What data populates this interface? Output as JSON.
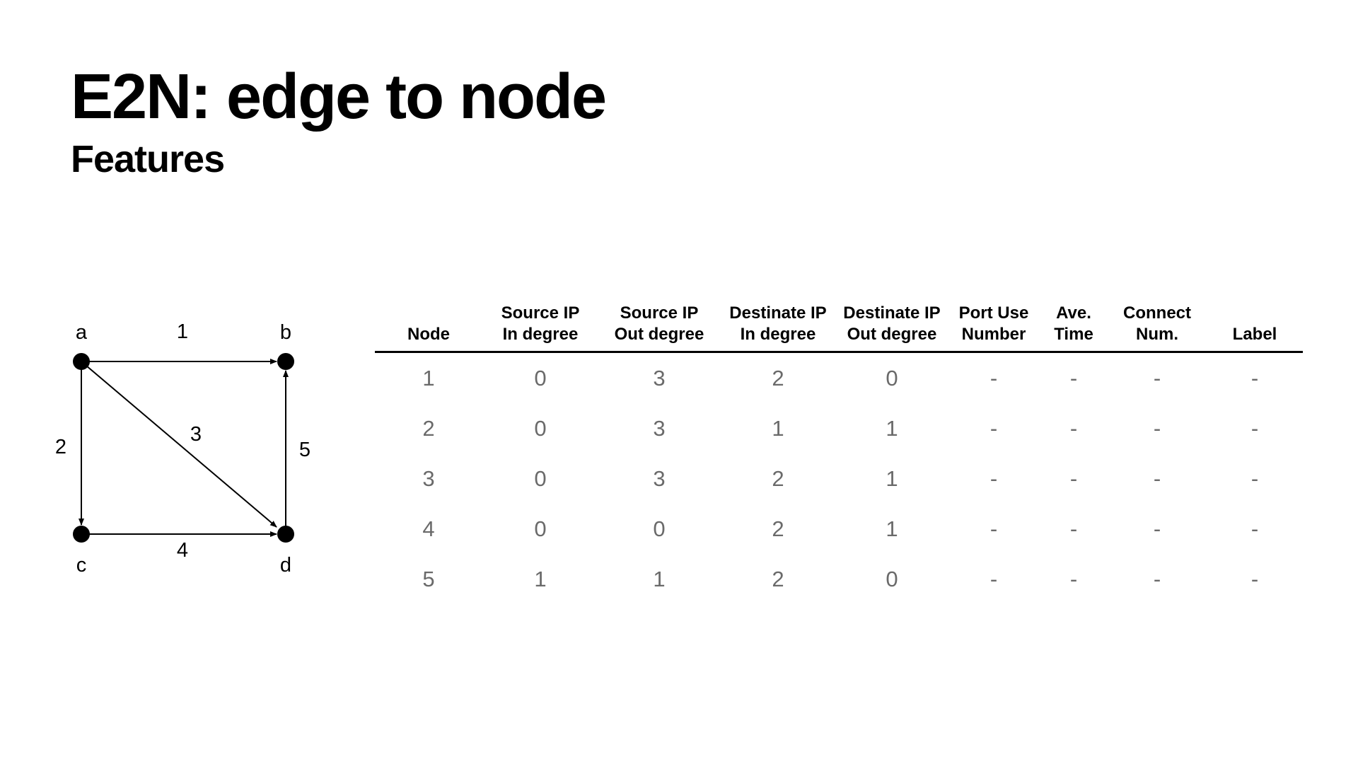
{
  "slide": {
    "title": "E2N: edge to node",
    "subtitle": "Features"
  },
  "graph": {
    "nodes": [
      {
        "id": "a",
        "label": "a"
      },
      {
        "id": "b",
        "label": "b"
      },
      {
        "id": "c",
        "label": "c"
      },
      {
        "id": "d",
        "label": "d"
      }
    ],
    "edges": [
      {
        "id": "1",
        "label": "1",
        "from": "a",
        "to": "b"
      },
      {
        "id": "2",
        "label": "2",
        "from": "a",
        "to": "c"
      },
      {
        "id": "3",
        "label": "3",
        "from": "a",
        "to": "d"
      },
      {
        "id": "4",
        "label": "4",
        "from": "c",
        "to": "d"
      },
      {
        "id": "5",
        "label": "5",
        "from": "d",
        "to": "b"
      }
    ]
  },
  "table": {
    "headers": [
      {
        "line1": "Node",
        "line2": ""
      },
      {
        "line1": "Source IP",
        "line2": "In degree"
      },
      {
        "line1": "Source IP",
        "line2": "Out degree"
      },
      {
        "line1": "Destinate IP",
        "line2": "In degree"
      },
      {
        "line1": "Destinate IP",
        "line2": "Out degree"
      },
      {
        "line1": "Port Use",
        "line2": "Number"
      },
      {
        "line1": "Ave.",
        "line2": "Time"
      },
      {
        "line1": "Connect",
        "line2": "Num."
      },
      {
        "line1": "Label",
        "line2": ""
      }
    ],
    "rows": [
      [
        "1",
        "0",
        "3",
        "2",
        "0",
        "-",
        "-",
        "-",
        "-"
      ],
      [
        "2",
        "0",
        "3",
        "1",
        "1",
        "-",
        "-",
        "-",
        "-"
      ],
      [
        "3",
        "0",
        "3",
        "2",
        "1",
        "-",
        "-",
        "-",
        "-"
      ],
      [
        "4",
        "0",
        "0",
        "2",
        "1",
        "-",
        "-",
        "-",
        "-"
      ],
      [
        "5",
        "1",
        "1",
        "2",
        "0",
        "-",
        "-",
        "-",
        "-"
      ]
    ]
  }
}
